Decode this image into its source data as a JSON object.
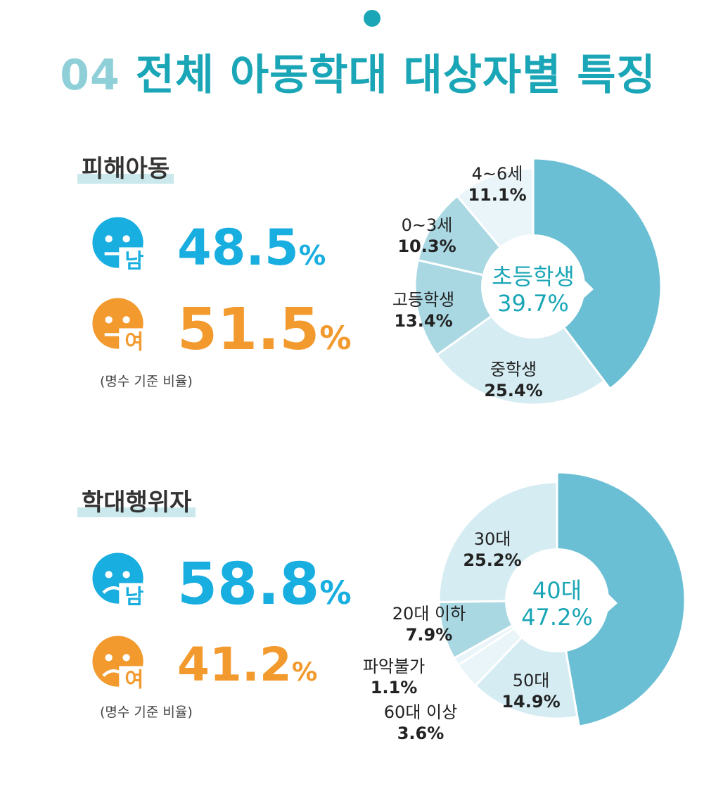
{
  "header": {
    "number": "04",
    "title": "전체 아동학대 대상자별 특징"
  },
  "colors": {
    "accent": "#1aa6b6",
    "male": "#19aee0",
    "female": "#f29a2e",
    "pie_dark": "#6bbfd4",
    "pie_mid": "#a9d8e3",
    "pie_light": "#d5ecf2",
    "pie_lightest": "#e9f5f8"
  },
  "victims": {
    "label": "피해아동",
    "male": {
      "tag": "남",
      "value": "48.5",
      "sign": "%"
    },
    "female": {
      "tag": "여",
      "value": "51.5",
      "sign": "%"
    },
    "note": "(명수 기준 비율)"
  },
  "abusers": {
    "label": "학대행위자",
    "male": {
      "tag": "남",
      "value": "58.8",
      "sign": "%"
    },
    "female": {
      "tag": "여",
      "value": "41.2",
      "sign": "%"
    },
    "note": "(명수 기준 비율)"
  },
  "icons": {
    "male_face": "smiling-face-icon",
    "female_face": "smiling-face-icon",
    "male_face_sad": "sad-face-icon",
    "female_face_sad": "sad-face-icon"
  },
  "chart_data": [
    {
      "type": "pie",
      "variant": "donut",
      "start": "12 o'clock",
      "direction": "clockwise",
      "categories": [
        "초등학생",
        "중학생",
        "고등학생",
        "0~3세",
        "4~6세"
      ],
      "values": [
        39.7,
        25.4,
        13.4,
        10.3,
        11.1
      ],
      "labels": [
        "39.7%",
        "25.4%",
        "13.4%",
        "10.3%",
        "11.1%"
      ],
      "center_label": {
        "name": "초등학생",
        "value": "39.7%"
      }
    },
    {
      "type": "pie",
      "variant": "donut",
      "start": "12 o'clock",
      "direction": "clockwise",
      "categories": [
        "40대",
        "50대",
        "60대 이상",
        "파악불가",
        "20대 이하",
        "30대"
      ],
      "values": [
        47.2,
        14.9,
        3.6,
        1.1,
        7.9,
        25.2
      ],
      "labels": [
        "47.2%",
        "14.9%",
        "3.6%",
        "1.1%",
        "7.9%",
        "25.2%"
      ],
      "center_label": {
        "name": "40대",
        "value": "47.2%"
      }
    }
  ]
}
